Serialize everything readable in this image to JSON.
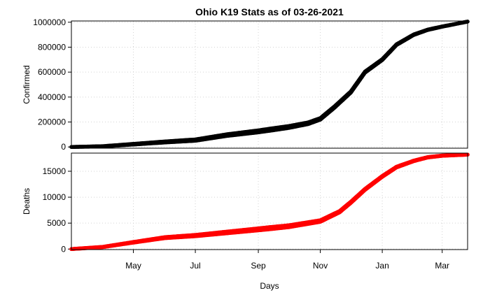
{
  "chart_data": {
    "title": "Ohio K19 Stats as of 03-26-2021",
    "xlabel": "Days",
    "x_axis": {
      "start": "2020-03-01",
      "end": "2021-03-26",
      "ticks": [
        {
          "date": "2020-05-01",
          "label": "May"
        },
        {
          "date": "2020-07-01",
          "label": "Jul"
        },
        {
          "date": "2020-09-01",
          "label": "Sep"
        },
        {
          "date": "2020-11-01",
          "label": "Nov"
        },
        {
          "date": "2021-01-01",
          "label": "Jan"
        },
        {
          "date": "2021-03-01",
          "label": "Mar"
        }
      ]
    },
    "grid": true,
    "panels": [
      {
        "type": "line",
        "ylabel": "Confirmed",
        "ylim": [
          -10000,
          1010000
        ],
        "yticks": [
          0,
          200000,
          400000,
          600000,
          800000,
          1000000
        ],
        "color": "#000000",
        "points": [
          {
            "x": "2020-03-01",
            "y": 0
          },
          {
            "x": "2020-04-01",
            "y": 5000
          },
          {
            "x": "2020-05-01",
            "y": 22000
          },
          {
            "x": "2020-06-01",
            "y": 40000
          },
          {
            "x": "2020-07-01",
            "y": 55000
          },
          {
            "x": "2020-08-01",
            "y": 95000
          },
          {
            "x": "2020-09-01",
            "y": 125000
          },
          {
            "x": "2020-10-01",
            "y": 160000
          },
          {
            "x": "2020-10-20",
            "y": 190000
          },
          {
            "x": "2020-11-01",
            "y": 225000
          },
          {
            "x": "2020-11-15",
            "y": 320000
          },
          {
            "x": "2020-12-01",
            "y": 440000
          },
          {
            "x": "2020-12-15",
            "y": 600000
          },
          {
            "x": "2021-01-01",
            "y": 700000
          },
          {
            "x": "2021-01-15",
            "y": 820000
          },
          {
            "x": "2021-02-01",
            "y": 900000
          },
          {
            "x": "2021-02-15",
            "y": 940000
          },
          {
            "x": "2021-03-01",
            "y": 965000
          },
          {
            "x": "2021-03-26",
            "y": 1005000
          }
        ]
      },
      {
        "type": "line",
        "ylabel": "Deaths",
        "ylim": [
          -100,
          18500
        ],
        "yticks": [
          0,
          5000,
          10000,
          15000
        ],
        "color": "#ff0000",
        "points": [
          {
            "x": "2020-03-01",
            "y": 0
          },
          {
            "x": "2020-04-01",
            "y": 400
          },
          {
            "x": "2020-05-01",
            "y": 1300
          },
          {
            "x": "2020-06-01",
            "y": 2200
          },
          {
            "x": "2020-07-01",
            "y": 2600
          },
          {
            "x": "2020-08-01",
            "y": 3200
          },
          {
            "x": "2020-09-01",
            "y": 3800
          },
          {
            "x": "2020-10-01",
            "y": 4400
          },
          {
            "x": "2020-11-01",
            "y": 5400
          },
          {
            "x": "2020-11-20",
            "y": 7200
          },
          {
            "x": "2020-12-01",
            "y": 9000
          },
          {
            "x": "2020-12-15",
            "y": 11500
          },
          {
            "x": "2021-01-01",
            "y": 14000
          },
          {
            "x": "2021-01-15",
            "y": 15800
          },
          {
            "x": "2021-02-01",
            "y": 17000
          },
          {
            "x": "2021-02-15",
            "y": 17700
          },
          {
            "x": "2021-03-01",
            "y": 18000
          },
          {
            "x": "2021-03-26",
            "y": 18200
          }
        ]
      }
    ]
  }
}
